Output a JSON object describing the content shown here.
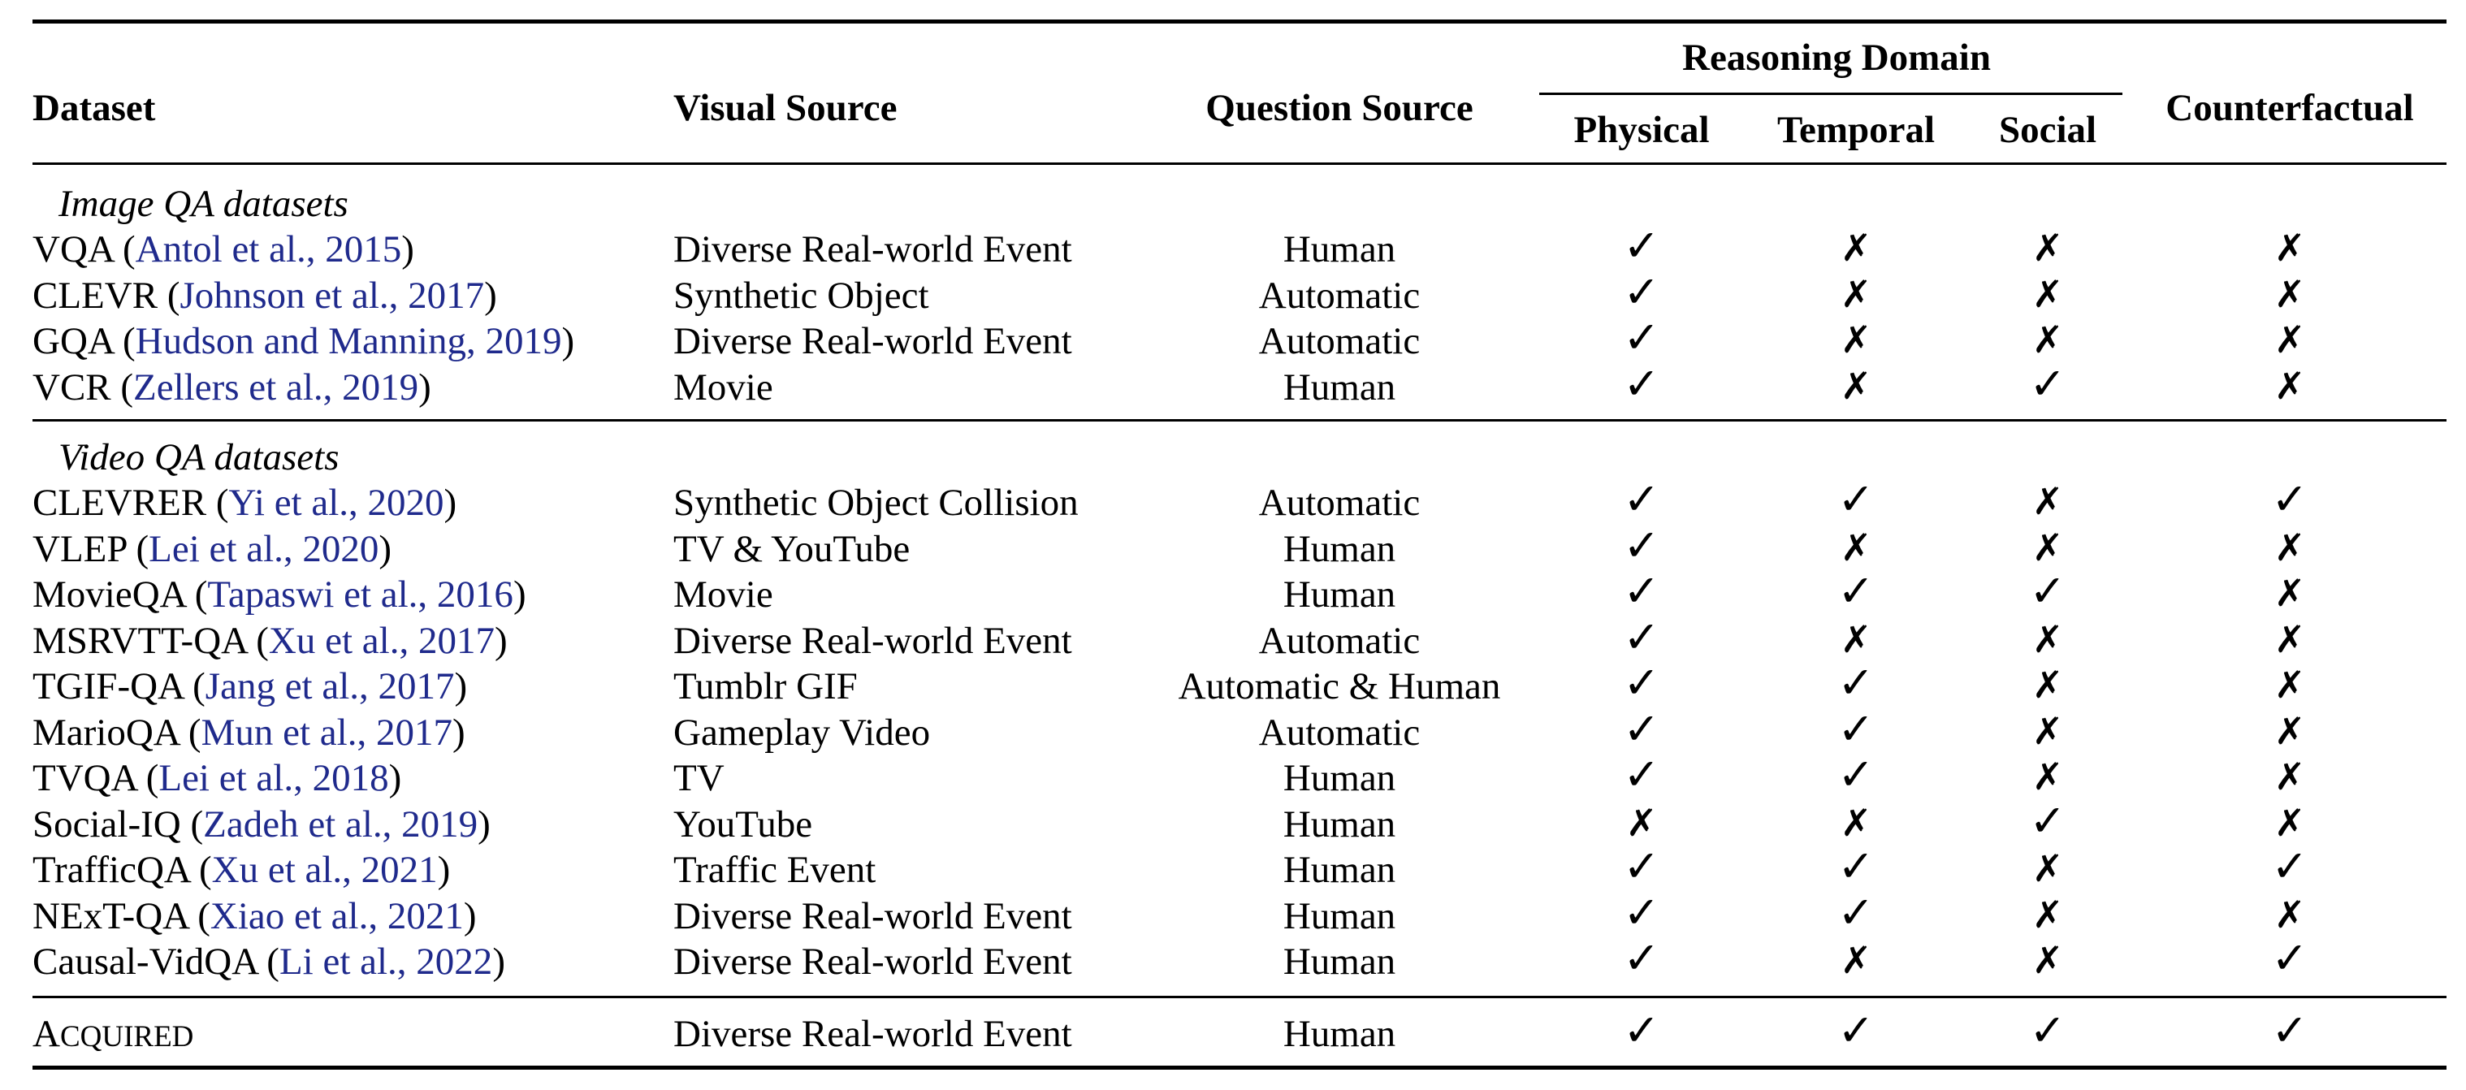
{
  "headers": {
    "dataset": "Dataset",
    "visual_source": "Visual Source",
    "question_source": "Question Source",
    "reasoning_domain": "Reasoning Domain",
    "physical": "Physical",
    "temporal": "Temporal",
    "social": "Social",
    "counterfactual": "Counterfactual"
  },
  "sections": {
    "image": "Image QA datasets",
    "video": "Video QA datasets"
  },
  "marks": {
    "check": "✓",
    "cross": "✗"
  },
  "image_rows": [
    {
      "name": "VQA",
      "cite": "Antol et al., 2015",
      "visual": "Diverse Real-world Event",
      "question": "Human",
      "physical": "✓",
      "temporal": "✗",
      "social": "✗",
      "counterfactual": "✗"
    },
    {
      "name": "CLEVR",
      "cite": "Johnson et al., 2017",
      "visual": "Synthetic Object",
      "question": "Automatic",
      "physical": "✓",
      "temporal": "✗",
      "social": "✗",
      "counterfactual": "✗"
    },
    {
      "name": "GQA",
      "cite": "Hudson and Manning, 2019",
      "visual": "Diverse Real-world Event",
      "question": "Automatic",
      "physical": "✓",
      "temporal": "✗",
      "social": "✗",
      "counterfactual": "✗"
    },
    {
      "name": "VCR",
      "cite": "Zellers et al., 2019",
      "visual": "Movie",
      "question": "Human",
      "physical": "✓",
      "temporal": "✗",
      "social": "✓",
      "counterfactual": "✗"
    }
  ],
  "video_rows": [
    {
      "name": "CLEVRER",
      "cite": "Yi et al., 2020",
      "visual": "Synthetic Object Collision",
      "question": "Automatic",
      "physical": "✓",
      "temporal": "✓",
      "social": "✗",
      "counterfactual": "✓"
    },
    {
      "name": "VLEP",
      "cite": "Lei et al., 2020",
      "visual": "TV & YouTube",
      "question": "Human",
      "physical": "✓",
      "temporal": "✗",
      "social": "✗",
      "counterfactual": "✗"
    },
    {
      "name": "MovieQA",
      "cite": "Tapaswi et al., 2016",
      "visual": "Movie",
      "question": "Human",
      "physical": "✓",
      "temporal": "✓",
      "social": "✓",
      "counterfactual": "✗"
    },
    {
      "name": "MSRVTT-QA",
      "cite": "Xu et al., 2017",
      "visual": "Diverse Real-world Event",
      "question": "Automatic",
      "physical": "✓",
      "temporal": "✗",
      "social": "✗",
      "counterfactual": "✗"
    },
    {
      "name": "TGIF-QA",
      "cite": "Jang et al., 2017",
      "visual": "Tumblr GIF",
      "question": "Automatic & Human",
      "physical": "✓",
      "temporal": "✓",
      "social": "✗",
      "counterfactual": "✗"
    },
    {
      "name": "MarioQA",
      "cite": "Mun et al., 2017",
      "visual": "Gameplay Video",
      "question": "Automatic",
      "physical": "✓",
      "temporal": "✓",
      "social": "✗",
      "counterfactual": "✗"
    },
    {
      "name": "TVQA",
      "cite": "Lei et al., 2018",
      "visual": "TV",
      "question": "Human",
      "physical": "✓",
      "temporal": "✓",
      "social": "✗",
      "counterfactual": "✗"
    },
    {
      "name": "Social-IQ",
      "cite": "Zadeh et al., 2019",
      "visual": "YouTube",
      "question": "Human",
      "physical": "✗",
      "temporal": "✗",
      "social": "✓",
      "counterfactual": "✗"
    },
    {
      "name": "TrafficQA",
      "cite": "Xu et al., 2021",
      "visual": "Traffic Event",
      "question": "Human",
      "physical": "✓",
      "temporal": "✓",
      "social": "✗",
      "counterfactual": "✓"
    },
    {
      "name": "NExT-QA",
      "cite": "Xiao et al., 2021",
      "visual": "Diverse Real-world Event",
      "question": "Human",
      "physical": "✓",
      "temporal": "✓",
      "social": "✗",
      "counterfactual": "✗"
    },
    {
      "name": "Causal-VidQA",
      "cite": "Li et al., 2022",
      "visual": "Diverse Real-world Event",
      "question": "Human",
      "physical": "✓",
      "temporal": "✗",
      "social": "✗",
      "counterfactual": "✓"
    }
  ],
  "final_row": {
    "name_first": "A",
    "name_rest": "CQUIRED",
    "visual": "Diverse Real-world Event",
    "question": "Human",
    "physical": "✓",
    "temporal": "✓",
    "social": "✓",
    "counterfactual": "✓"
  }
}
